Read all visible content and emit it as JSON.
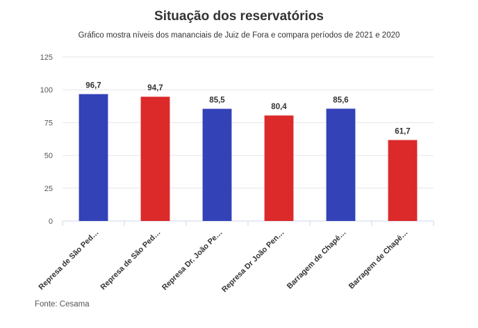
{
  "chart_data": {
    "type": "bar",
    "title": "Situação dos reservatórios",
    "subtitle": "Gráfico mostra níveis dos mananciais de Juiz de Fora e compara períodos de 2021 e 2020",
    "categories": [
      "Represa de São Ped…",
      "Represa de São Ped…",
      "Represa Dr. João Pe…",
      "Represa Dr João Pen…",
      "Barragem de Chapé…",
      "Barragem de Chapé…"
    ],
    "values": [
      96.7,
      94.7,
      85.5,
      80.4,
      85.6,
      61.7
    ],
    "value_labels": [
      "96,7",
      "94,7",
      "85,5",
      "80,4",
      "85,6",
      "61,7"
    ],
    "bar_colors": [
      "#3442b8",
      "#dc2a2a",
      "#3442b8",
      "#dc2a2a",
      "#3442b8",
      "#dc2a2a"
    ],
    "ylim": [
      0,
      125
    ],
    "yticks": [
      0,
      25,
      50,
      75,
      100,
      125
    ],
    "grid": true,
    "xlabel": "",
    "ylabel": "",
    "source": "Fonte: Cesama"
  }
}
